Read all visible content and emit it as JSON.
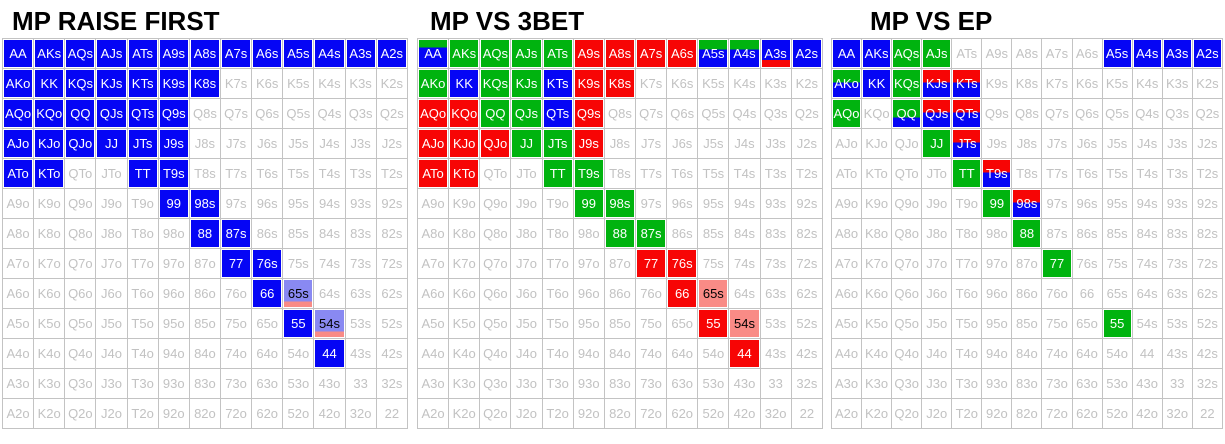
{
  "palette": {
    "white": "#ffffff",
    "blue": "#0505f5",
    "green": "#00b30f",
    "red": "#f70505",
    "periwinkle": "#8989f2",
    "salmon": "#f98b86",
    "gray_text": "#c2c2c2",
    "white_text": "#ffffff",
    "black_text": "#000000",
    "border": "#c3c3c3",
    "title_text": "#000000"
  },
  "cell_states": {
    "f": {
      "top": "white",
      "bottom": "white",
      "split": 100,
      "text": "gray_text"
    },
    "b": {
      "top": "blue",
      "bottom": "blue",
      "split": 100,
      "text": "white_text"
    },
    "g": {
      "top": "green",
      "bottom": "green",
      "split": 100,
      "text": "white_text"
    },
    "r": {
      "top": "red",
      "bottom": "red",
      "split": 100,
      "text": "white_text"
    },
    "s": {
      "top": "salmon",
      "bottom": "salmon",
      "split": 100,
      "text": "black_text"
    },
    "gb25": {
      "top": "green",
      "bottom": "blue",
      "split": 28,
      "text": "white_text"
    },
    "gb33": {
      "top": "green",
      "bottom": "blue",
      "split": 34,
      "text": "white_text"
    },
    "gb45": {
      "top": "green",
      "bottom": "blue",
      "split": 45,
      "text": "white_text"
    },
    "gb60": {
      "top": "green",
      "bottom": "blue",
      "split": 62,
      "text": "white_text"
    },
    "br70": {
      "top": "blue",
      "bottom": "red",
      "split": 71,
      "text": "white_text"
    },
    "rb45": {
      "top": "red",
      "bottom": "blue",
      "split": 44,
      "text": "white_text"
    },
    "pb75": {
      "top": "periwinkle",
      "bottom": "salmon",
      "split": 76,
      "text": "black_text"
    }
  },
  "hands": [
    [
      "AA",
      "AKs",
      "AQs",
      "AJs",
      "ATs",
      "A9s",
      "A8s",
      "A7s",
      "A6s",
      "A5s",
      "A4s",
      "A3s",
      "A2s"
    ],
    [
      "AKo",
      "KK",
      "KQs",
      "KJs",
      "KTs",
      "K9s",
      "K8s",
      "K7s",
      "K6s",
      "K5s",
      "K4s",
      "K3s",
      "K2s"
    ],
    [
      "AQo",
      "KQo",
      "QQ",
      "QJs",
      "QTs",
      "Q9s",
      "Q8s",
      "Q7s",
      "Q6s",
      "Q5s",
      "Q4s",
      "Q3s",
      "Q2s"
    ],
    [
      "AJo",
      "KJo",
      "QJo",
      "JJ",
      "JTs",
      "J9s",
      "J8s",
      "J7s",
      "J6s",
      "J5s",
      "J4s",
      "J3s",
      "J2s"
    ],
    [
      "ATo",
      "KTo",
      "QTo",
      "JTo",
      "TT",
      "T9s",
      "T8s",
      "T7s",
      "T6s",
      "T5s",
      "T4s",
      "T3s",
      "T2s"
    ],
    [
      "A9o",
      "K9o",
      "Q9o",
      "J9o",
      "T9o",
      "99",
      "98s",
      "97s",
      "96s",
      "95s",
      "94s",
      "93s",
      "92s"
    ],
    [
      "A8o",
      "K8o",
      "Q8o",
      "J8o",
      "T8o",
      "98o",
      "88",
      "87s",
      "86s",
      "85s",
      "84s",
      "83s",
      "82s"
    ],
    [
      "A7o",
      "K7o",
      "Q7o",
      "J7o",
      "T7o",
      "97o",
      "87o",
      "77",
      "76s",
      "75s",
      "74s",
      "73s",
      "72s"
    ],
    [
      "A6o",
      "K6o",
      "Q6o",
      "J6o",
      "T6o",
      "96o",
      "86o",
      "76o",
      "66",
      "65s",
      "64s",
      "63s",
      "62s"
    ],
    [
      "A5o",
      "K5o",
      "Q5o",
      "J5o",
      "T5o",
      "95o",
      "85o",
      "75o",
      "65o",
      "55",
      "54s",
      "53s",
      "52s"
    ],
    [
      "A4o",
      "K4o",
      "Q4o",
      "J4o",
      "T4o",
      "94o",
      "84o",
      "74o",
      "64o",
      "54o",
      "44",
      "43s",
      "42s"
    ],
    [
      "A3o",
      "K3o",
      "Q3o",
      "J3o",
      "T3o",
      "93o",
      "83o",
      "73o",
      "63o",
      "53o",
      "43o",
      "33",
      "32s"
    ],
    [
      "A2o",
      "K2o",
      "Q2o",
      "J2o",
      "T2o",
      "92o",
      "82o",
      "72o",
      "62o",
      "52o",
      "42o",
      "32o",
      "22"
    ]
  ],
  "chart_data": [
    {
      "type": "heatmap",
      "title": "MP RAISE FIRST",
      "cells": [
        [
          "b",
          "b",
          "b",
          "b",
          "b",
          "b",
          "b",
          "b",
          "b",
          "b",
          "b",
          "b",
          "b"
        ],
        [
          "b",
          "b",
          "b",
          "b",
          "b",
          "b",
          "b",
          "f",
          "f",
          "f",
          "f",
          "f",
          "f"
        ],
        [
          "b",
          "b",
          "b",
          "b",
          "b",
          "b",
          "f",
          "f",
          "f",
          "f",
          "f",
          "f",
          "f"
        ],
        [
          "b",
          "b",
          "b",
          "b",
          "b",
          "b",
          "f",
          "f",
          "f",
          "f",
          "f",
          "f",
          "f"
        ],
        [
          "b",
          "b",
          "f",
          "f",
          "b",
          "b",
          "f",
          "f",
          "f",
          "f",
          "f",
          "f",
          "f"
        ],
        [
          "f",
          "f",
          "f",
          "f",
          "f",
          "b",
          "b",
          "f",
          "f",
          "f",
          "f",
          "f",
          "f"
        ],
        [
          "f",
          "f",
          "f",
          "f",
          "f",
          "f",
          "b",
          "b",
          "f",
          "f",
          "f",
          "f",
          "f"
        ],
        [
          "f",
          "f",
          "f",
          "f",
          "f",
          "f",
          "f",
          "b",
          "b",
          "f",
          "f",
          "f",
          "f"
        ],
        [
          "f",
          "f",
          "f",
          "f",
          "f",
          "f",
          "f",
          "f",
          "b",
          "pb75",
          "f",
          "f",
          "f"
        ],
        [
          "f",
          "f",
          "f",
          "f",
          "f",
          "f",
          "f",
          "f",
          "f",
          "b",
          "pb75",
          "f",
          "f"
        ],
        [
          "f",
          "f",
          "f",
          "f",
          "f",
          "f",
          "f",
          "f",
          "f",
          "f",
          "b",
          "f",
          "f"
        ],
        [
          "f",
          "f",
          "f",
          "f",
          "f",
          "f",
          "f",
          "f",
          "f",
          "f",
          "f",
          "f",
          "f"
        ],
        [
          "f",
          "f",
          "f",
          "f",
          "f",
          "f",
          "f",
          "f",
          "f",
          "f",
          "f",
          "f",
          "f"
        ]
      ]
    },
    {
      "type": "heatmap",
      "title": "MP VS 3BET",
      "cells": [
        [
          "gb25",
          "g",
          "g",
          "g",
          "g",
          "r",
          "r",
          "r",
          "r",
          "gb33",
          "gb33",
          "br70",
          "b"
        ],
        [
          "g",
          "b",
          "g",
          "g",
          "b",
          "r",
          "r",
          "f",
          "f",
          "f",
          "f",
          "f",
          "f"
        ],
        [
          "r",
          "r",
          "g",
          "g",
          "b",
          "r",
          "f",
          "f",
          "f",
          "f",
          "f",
          "f",
          "f"
        ],
        [
          "r",
          "r",
          "r",
          "g",
          "g",
          "r",
          "f",
          "f",
          "f",
          "f",
          "f",
          "f",
          "f"
        ],
        [
          "r",
          "r",
          "f",
          "f",
          "g",
          "g",
          "f",
          "f",
          "f",
          "f",
          "f",
          "f",
          "f"
        ],
        [
          "f",
          "f",
          "f",
          "f",
          "f",
          "g",
          "g",
          "f",
          "f",
          "f",
          "f",
          "f",
          "f"
        ],
        [
          "f",
          "f",
          "f",
          "f",
          "f",
          "f",
          "g",
          "g",
          "f",
          "f",
          "f",
          "f",
          "f"
        ],
        [
          "f",
          "f",
          "f",
          "f",
          "f",
          "f",
          "f",
          "r",
          "r",
          "f",
          "f",
          "f",
          "f"
        ],
        [
          "f",
          "f",
          "f",
          "f",
          "f",
          "f",
          "f",
          "f",
          "r",
          "s",
          "f",
          "f",
          "f"
        ],
        [
          "f",
          "f",
          "f",
          "f",
          "f",
          "f",
          "f",
          "f",
          "f",
          "r",
          "s",
          "f",
          "f"
        ],
        [
          "f",
          "f",
          "f",
          "f",
          "f",
          "f",
          "f",
          "f",
          "f",
          "f",
          "r",
          "f",
          "f"
        ],
        [
          "f",
          "f",
          "f",
          "f",
          "f",
          "f",
          "f",
          "f",
          "f",
          "f",
          "f",
          "f",
          "f"
        ],
        [
          "f",
          "f",
          "f",
          "f",
          "f",
          "f",
          "f",
          "f",
          "f",
          "f",
          "f",
          "f",
          "f"
        ]
      ]
    },
    {
      "type": "heatmap",
      "title": "MP VS EP",
      "cells": [
        [
          "b",
          "b",
          "g",
          "g",
          "f",
          "f",
          "f",
          "f",
          "f",
          "b",
          "b",
          "b",
          "b"
        ],
        [
          "gb45",
          "b",
          "g",
          "rb45",
          "rb45",
          "f",
          "f",
          "f",
          "f",
          "f",
          "f",
          "f",
          "f"
        ],
        [
          "g",
          "f",
          "gb60",
          "rb45",
          "rb45",
          "f",
          "f",
          "f",
          "f",
          "f",
          "f",
          "f",
          "f"
        ],
        [
          "f",
          "f",
          "f",
          "g",
          "rb45",
          "f",
          "f",
          "f",
          "f",
          "f",
          "f",
          "f",
          "f"
        ],
        [
          "f",
          "f",
          "f",
          "f",
          "g",
          "rb45",
          "f",
          "f",
          "f",
          "f",
          "f",
          "f",
          "f"
        ],
        [
          "f",
          "f",
          "f",
          "f",
          "f",
          "g",
          "rb45",
          "f",
          "f",
          "f",
          "f",
          "f",
          "f"
        ],
        [
          "f",
          "f",
          "f",
          "f",
          "f",
          "f",
          "g",
          "f",
          "f",
          "f",
          "f",
          "f",
          "f"
        ],
        [
          "f",
          "f",
          "f",
          "f",
          "f",
          "f",
          "f",
          "g",
          "f",
          "f",
          "f",
          "f",
          "f"
        ],
        [
          "f",
          "f",
          "f",
          "f",
          "f",
          "f",
          "f",
          "f",
          "f",
          "f",
          "f",
          "f",
          "f"
        ],
        [
          "f",
          "f",
          "f",
          "f",
          "f",
          "f",
          "f",
          "f",
          "f",
          "g",
          "f",
          "f",
          "f"
        ],
        [
          "f",
          "f",
          "f",
          "f",
          "f",
          "f",
          "f",
          "f",
          "f",
          "f",
          "f",
          "f",
          "f"
        ],
        [
          "f",
          "f",
          "f",
          "f",
          "f",
          "f",
          "f",
          "f",
          "f",
          "f",
          "f",
          "f",
          "f"
        ],
        [
          "f",
          "f",
          "f",
          "f",
          "f",
          "f",
          "f",
          "f",
          "f",
          "f",
          "f",
          "f",
          "f"
        ]
      ]
    }
  ]
}
